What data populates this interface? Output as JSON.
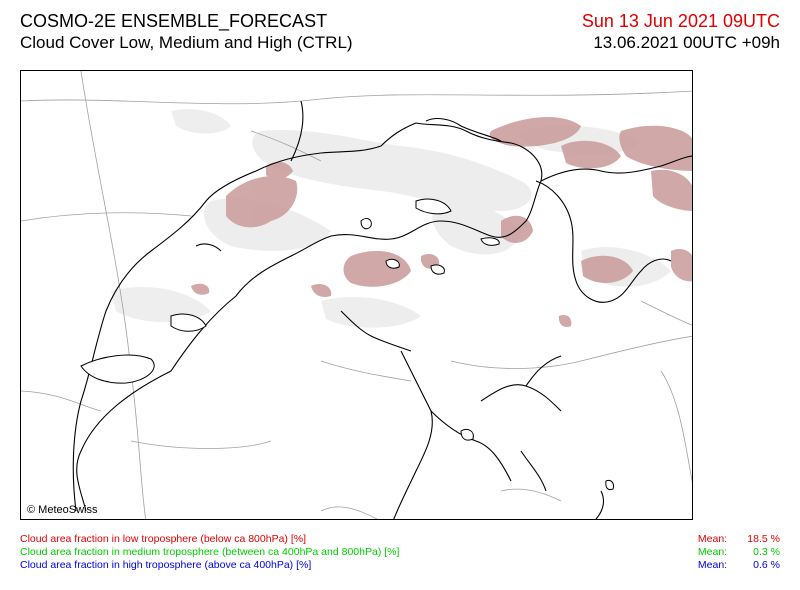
{
  "header": {
    "title": "COSMO-2E ENSEMBLE_FORECAST",
    "subtitle": "Cloud Cover Low, Medium and High (CTRL)",
    "valid_time": "Sun 13 Jun 2021 09UTC",
    "run_time": "13.06.2021 00UTC +09h"
  },
  "map": {
    "copyright": "© MeteoSwiss",
    "colors": {
      "low_cloud": "#c99a9a",
      "light_cloud": "#ececec",
      "borders": "#000000",
      "grid": "#a0a0a0"
    }
  },
  "legend": [
    {
      "text": "Cloud area fraction in low troposphere (below ca 800hPa) [%]",
      "color": "#e00000"
    },
    {
      "text": "Cloud area fraction in medium troposphere (between ca 400hPa and 800hPa) [%]",
      "color": "#00cc00"
    },
    {
      "text": "Cloud area fraction in high troposphere (above ca 400hPa) [%]",
      "color": "#0000e0"
    }
  ],
  "means": [
    {
      "label": "Mean:",
      "value": "18.5 %",
      "color": "#e00000"
    },
    {
      "label": "Mean:",
      "value": "0.3 %",
      "color": "#00cc00"
    },
    {
      "label": "Mean:",
      "value": "0.6 %",
      "color": "#0000e0"
    }
  ]
}
